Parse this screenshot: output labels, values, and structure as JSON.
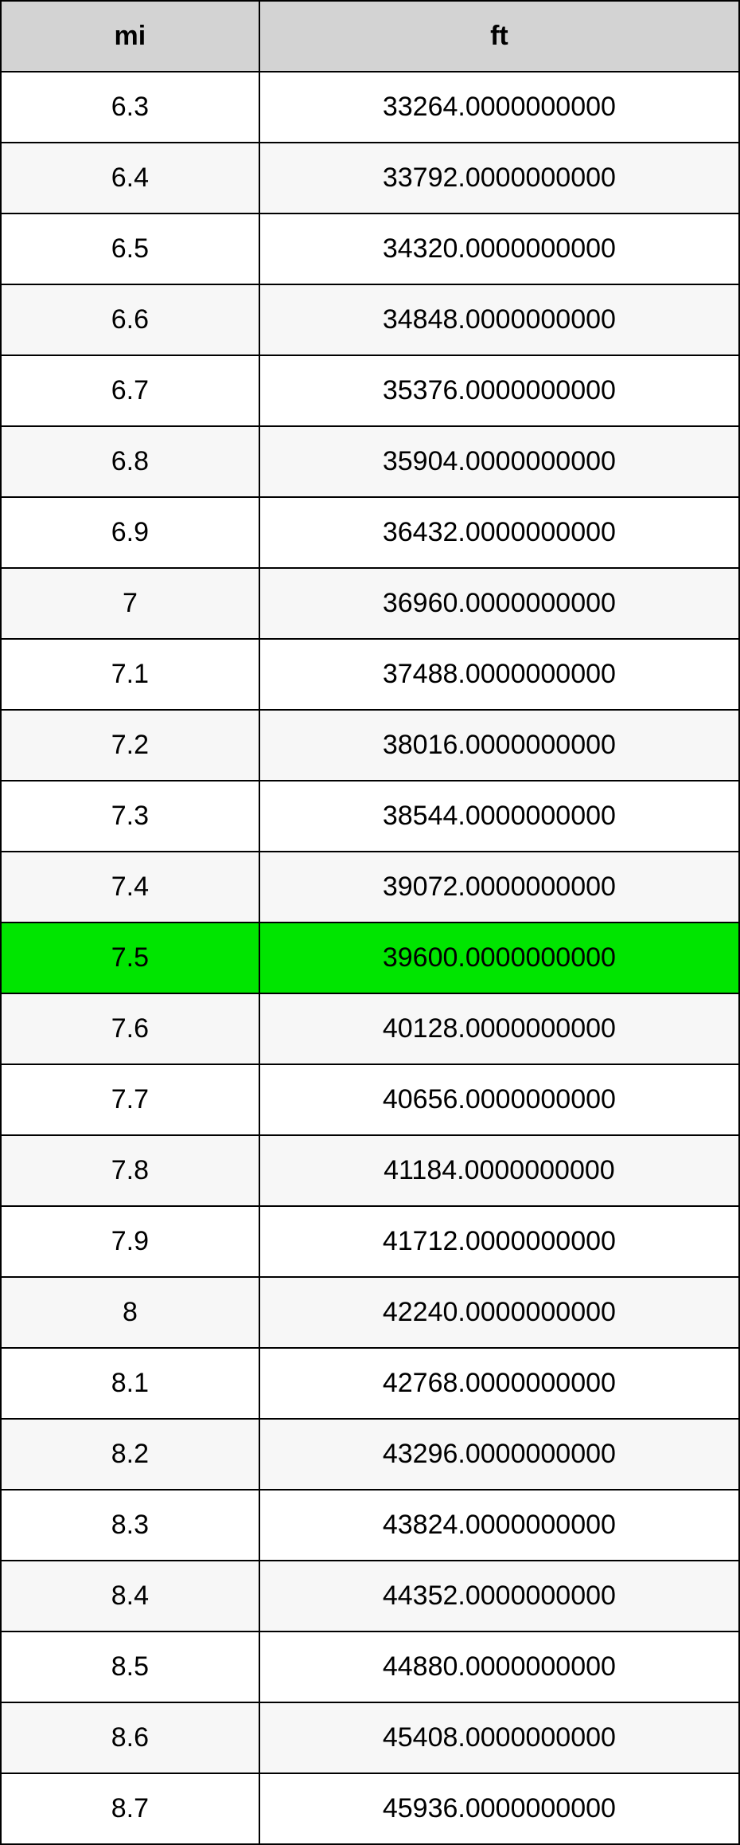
{
  "table": {
    "columns": [
      "mi",
      "ft"
    ],
    "column_widths": [
      "35%",
      "65%"
    ],
    "header_bg": "#d3d3d3",
    "border_color": "#000000",
    "row_alt_bg": "#f7f7f7",
    "row_bg": "#ffffff",
    "highlight_bg": "#00e500",
    "font_size": 34,
    "rows": [
      {
        "mi": "6.3",
        "ft": "33264.0000000000",
        "highlight": false
      },
      {
        "mi": "6.4",
        "ft": "33792.0000000000",
        "highlight": false
      },
      {
        "mi": "6.5",
        "ft": "34320.0000000000",
        "highlight": false
      },
      {
        "mi": "6.6",
        "ft": "34848.0000000000",
        "highlight": false
      },
      {
        "mi": "6.7",
        "ft": "35376.0000000000",
        "highlight": false
      },
      {
        "mi": "6.8",
        "ft": "35904.0000000000",
        "highlight": false
      },
      {
        "mi": "6.9",
        "ft": "36432.0000000000",
        "highlight": false
      },
      {
        "mi": "7",
        "ft": "36960.0000000000",
        "highlight": false
      },
      {
        "mi": "7.1",
        "ft": "37488.0000000000",
        "highlight": false
      },
      {
        "mi": "7.2",
        "ft": "38016.0000000000",
        "highlight": false
      },
      {
        "mi": "7.3",
        "ft": "38544.0000000000",
        "highlight": false
      },
      {
        "mi": "7.4",
        "ft": "39072.0000000000",
        "highlight": false
      },
      {
        "mi": "7.5",
        "ft": "39600.0000000000",
        "highlight": true
      },
      {
        "mi": "7.6",
        "ft": "40128.0000000000",
        "highlight": false
      },
      {
        "mi": "7.7",
        "ft": "40656.0000000000",
        "highlight": false
      },
      {
        "mi": "7.8",
        "ft": "41184.0000000000",
        "highlight": false
      },
      {
        "mi": "7.9",
        "ft": "41712.0000000000",
        "highlight": false
      },
      {
        "mi": "8",
        "ft": "42240.0000000000",
        "highlight": false
      },
      {
        "mi": "8.1",
        "ft": "42768.0000000000",
        "highlight": false
      },
      {
        "mi": "8.2",
        "ft": "43296.0000000000",
        "highlight": false
      },
      {
        "mi": "8.3",
        "ft": "43824.0000000000",
        "highlight": false
      },
      {
        "mi": "8.4",
        "ft": "44352.0000000000",
        "highlight": false
      },
      {
        "mi": "8.5",
        "ft": "44880.0000000000",
        "highlight": false
      },
      {
        "mi": "8.6",
        "ft": "45408.0000000000",
        "highlight": false
      },
      {
        "mi": "8.7",
        "ft": "45936.0000000000",
        "highlight": false
      }
    ]
  }
}
